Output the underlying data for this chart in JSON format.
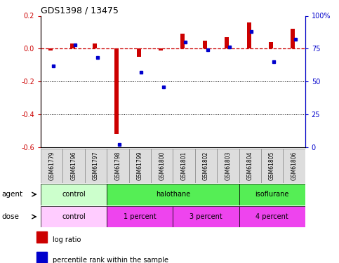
{
  "title": "GDS1398 / 13475",
  "samples": [
    "GSM61779",
    "GSM61796",
    "GSM61797",
    "GSM61798",
    "GSM61799",
    "GSM61800",
    "GSM61801",
    "GSM61802",
    "GSM61803",
    "GSM61804",
    "GSM61805",
    "GSM61806"
  ],
  "log_ratio": [
    -0.01,
    0.03,
    0.03,
    -0.52,
    -0.05,
    -0.01,
    0.09,
    0.05,
    0.07,
    0.16,
    0.04,
    0.12
  ],
  "percentile": [
    62,
    78,
    68,
    2,
    57,
    46,
    80,
    74,
    76,
    88,
    65,
    82
  ],
  "ylim_left": [
    -0.6,
    0.2
  ],
  "ylim_right": [
    0,
    100
  ],
  "yticks_left": [
    -0.6,
    -0.4,
    -0.2,
    0.0,
    0.2
  ],
  "yticks_right": [
    0,
    25,
    50,
    75,
    100
  ],
  "ytick_labels_right": [
    "0",
    "25",
    "50",
    "75",
    "100%"
  ],
  "bar_color_red": "#cc0000",
  "bar_color_blue": "#0000cc",
  "hline_color": "#cc0000",
  "agent_groups": [
    {
      "label": "control",
      "start": 0,
      "end": 3,
      "color": "#ccffcc"
    },
    {
      "label": "halothane",
      "start": 3,
      "end": 9,
      "color": "#44dd44"
    },
    {
      "label": "isoflurane",
      "start": 9,
      "end": 12,
      "color": "#44dd44"
    }
  ],
  "dose_groups": [
    {
      "label": "control",
      "start": 0,
      "end": 3,
      "color": "#ffccff"
    },
    {
      "label": "1 percent",
      "start": 3,
      "end": 6,
      "color": "#ee44ee"
    },
    {
      "label": "3 percent",
      "start": 6,
      "end": 9,
      "color": "#ee44ee"
    },
    {
      "label": "4 percent",
      "start": 9,
      "end": 12,
      "color": "#ee44ee"
    }
  ],
  "legend_red_label": "log ratio",
  "legend_blue_label": "percentile rank within the sample",
  "agent_label": "agent",
  "dose_label": "dose",
  "bg_color": "#ffffff"
}
